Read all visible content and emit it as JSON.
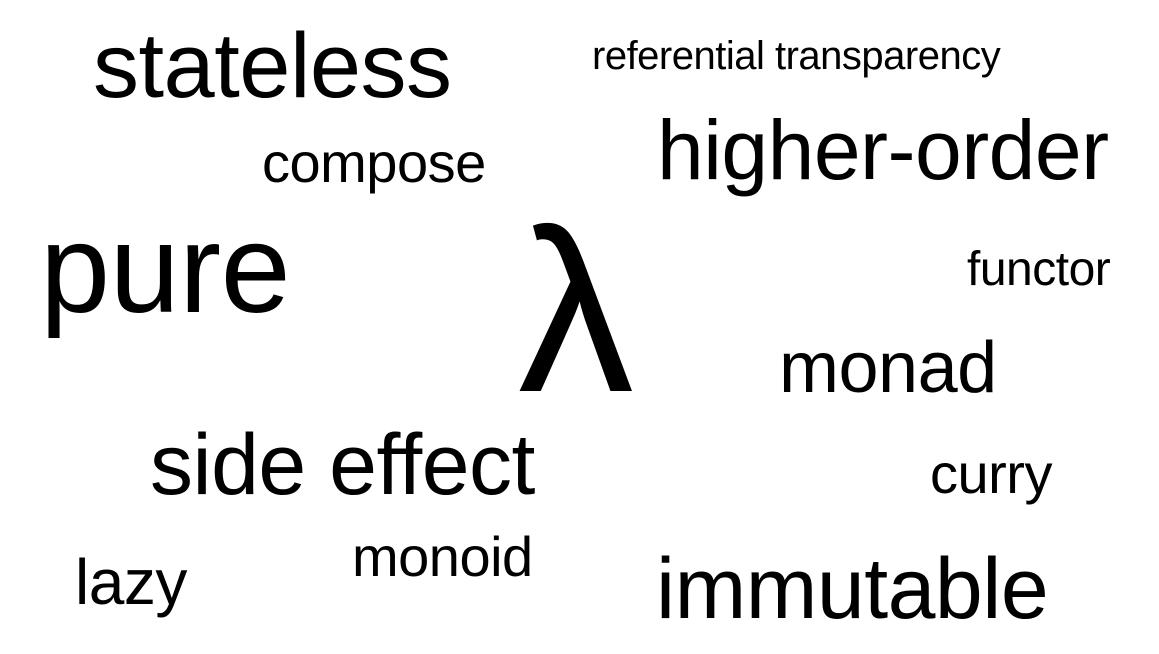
{
  "word_cloud": {
    "background_color": "#ffffff",
    "text_color": "#000000",
    "words": {
      "stateless": "stateless",
      "referential_transparency": "referential transparency",
      "compose": "compose",
      "higher_order": "higher-order",
      "pure": "pure",
      "lambda": "λ",
      "functor": "functor",
      "monad": "monad",
      "side_effect": "side effect",
      "curry": "curry",
      "lazy": "lazy",
      "monoid": "monoid",
      "immutable": "immutable"
    }
  }
}
